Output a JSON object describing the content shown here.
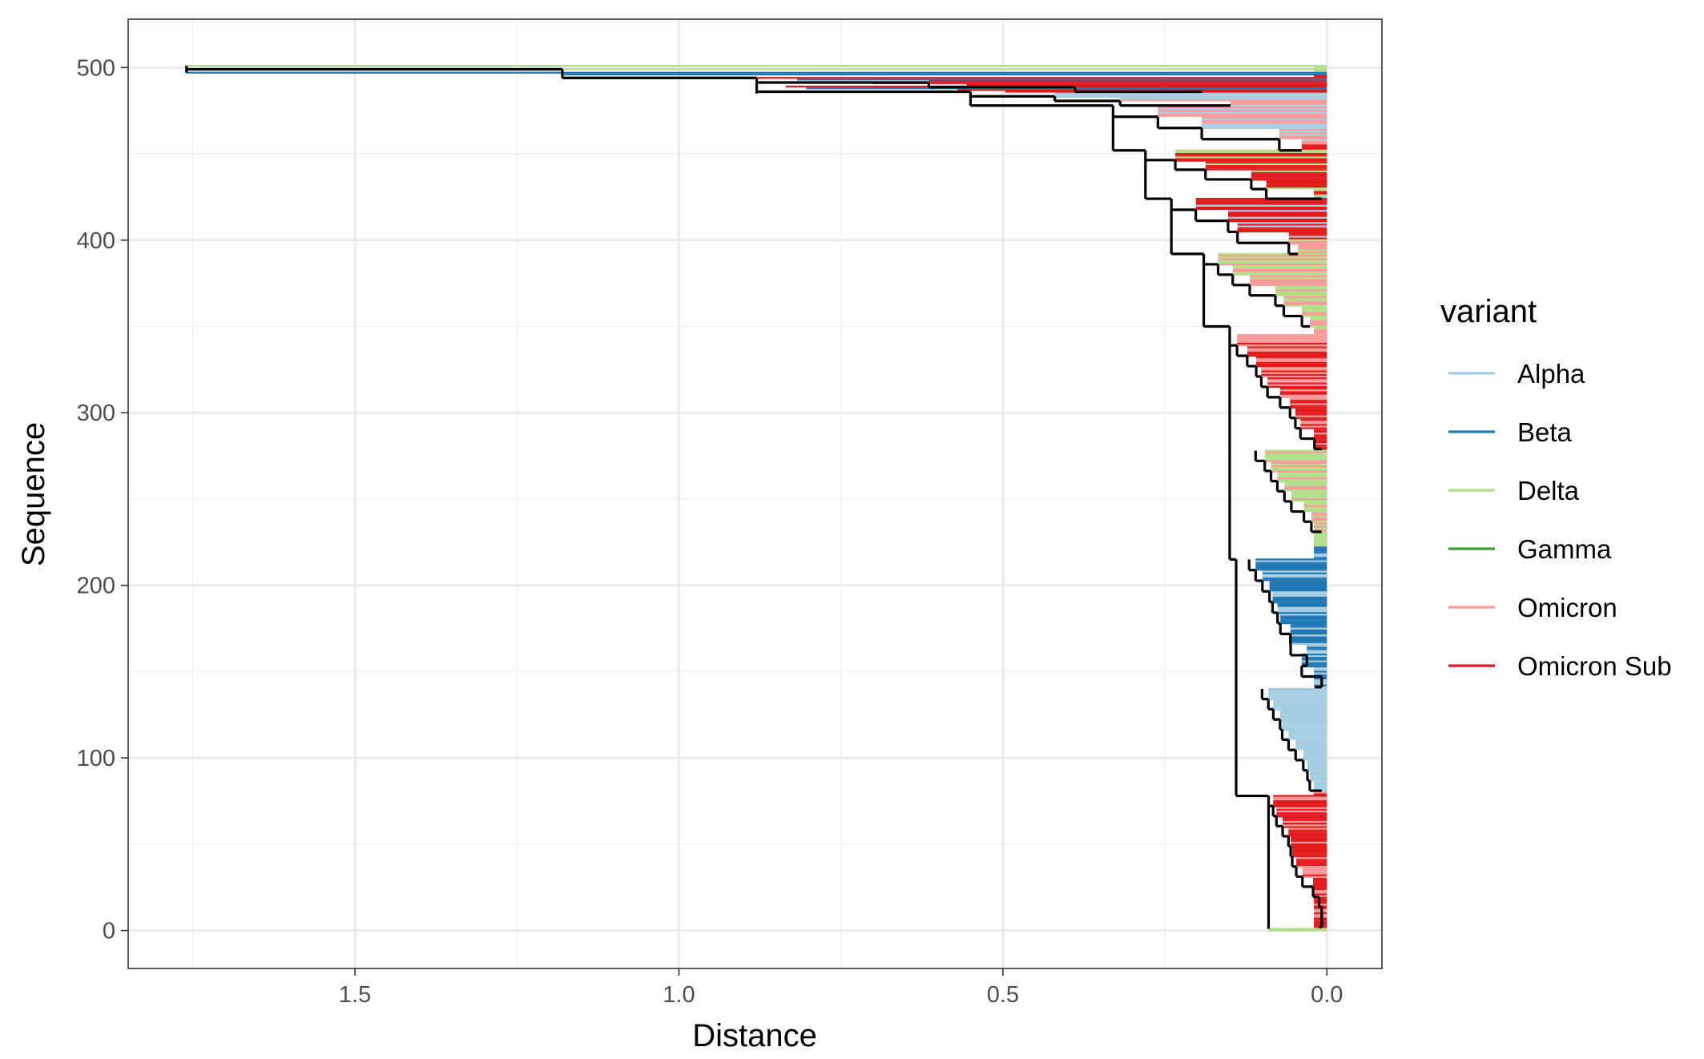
{
  "chart_data": {
    "type": "dendrogram",
    "xlabel": "Distance",
    "ylabel": "Sequence",
    "x_reversed": true,
    "xlim": [
      1.85,
      -0.085
    ],
    "ylim": [
      -22,
      528
    ],
    "x_ticks": [
      1.5,
      1.0,
      0.5,
      0.0
    ],
    "x_tick_labels": [
      "1.5",
      "1.0",
      "0.5",
      "0.0"
    ],
    "y_ticks": [
      0,
      100,
      200,
      300,
      400,
      500
    ],
    "y_tick_labels": [
      "0",
      "100",
      "200",
      "300",
      "400",
      "500"
    ],
    "grid": true,
    "legend_position": "right",
    "legend": {
      "title": "variant",
      "entries": [
        {
          "label": "Alpha",
          "color": "#a6cee3"
        },
        {
          "label": "Beta",
          "color": "#1f78b4"
        },
        {
          "label": "Delta",
          "color": "#b2df8a"
        },
        {
          "label": "Gamma",
          "color": "#33a02c"
        },
        {
          "label": "Omicron",
          "color": "#fb9a99"
        },
        {
          "label": "Omicron Sub",
          "color": "#e31a1c"
        }
      ]
    },
    "leaf_count": 502,
    "leaf_variant_blocks": [
      {
        "from": 0,
        "to": 1,
        "variant": "Delta"
      },
      {
        "from": 2,
        "to": 80,
        "variant": "Omicron Sub",
        "mixed_with": "Omicron"
      },
      {
        "from": 81,
        "to": 140,
        "variant": "Alpha"
      },
      {
        "from": 141,
        "to": 222,
        "variant": "Beta",
        "mixed_with": "Alpha"
      },
      {
        "from": 223,
        "to": 230,
        "variant": "Delta"
      },
      {
        "from": 231,
        "to": 278,
        "variant": "Delta",
        "mixed_with": "Omicron"
      },
      {
        "from": 279,
        "to": 345,
        "variant": "Omicron Sub",
        "mixed_with": "Omicron"
      },
      {
        "from": 346,
        "to": 400,
        "variant": "Delta",
        "mixed_with": "Omicron"
      },
      {
        "from": 401,
        "to": 425,
        "variant": "Omicron Sub",
        "mixed_with": "Alpha"
      },
      {
        "from": 426,
        "to": 455,
        "variant": "Omicron Sub",
        "mixed_with": "Delta"
      },
      {
        "from": 456,
        "to": 485,
        "variant": "Alpha",
        "mixed_with": "Omicron"
      },
      {
        "from": 486,
        "to": 497,
        "variant": "Omicron Sub",
        "mixed_with": "Beta"
      },
      {
        "from": 498,
        "to": 501,
        "variant": "Delta"
      }
    ],
    "main_branches": [
      {
        "node_x": 1.76,
        "y_low": 497,
        "y_high": 501
      },
      {
        "node_x": 1.18,
        "y_low": 494,
        "y_high": 499
      },
      {
        "node_x": 0.88,
        "y_low": 485,
        "y_high": 494
      },
      {
        "node_x": 0.55,
        "y_low": 478,
        "y_high": 486
      },
      {
        "node_x": 0.33,
        "y_low": 452,
        "y_high": 478
      },
      {
        "node_x": 0.28,
        "y_low": 424,
        "y_high": 452
      },
      {
        "node_x": 0.24,
        "y_low": 392,
        "y_high": 424
      },
      {
        "node_x": 0.19,
        "y_low": 350,
        "y_high": 392
      },
      {
        "node_x": 0.15,
        "y_low": 215,
        "y_high": 350
      },
      {
        "node_x": 0.14,
        "y_low": 78,
        "y_high": 215
      },
      {
        "node_x": 0.09,
        "y_low": 1,
        "y_high": 78
      }
    ]
  }
}
